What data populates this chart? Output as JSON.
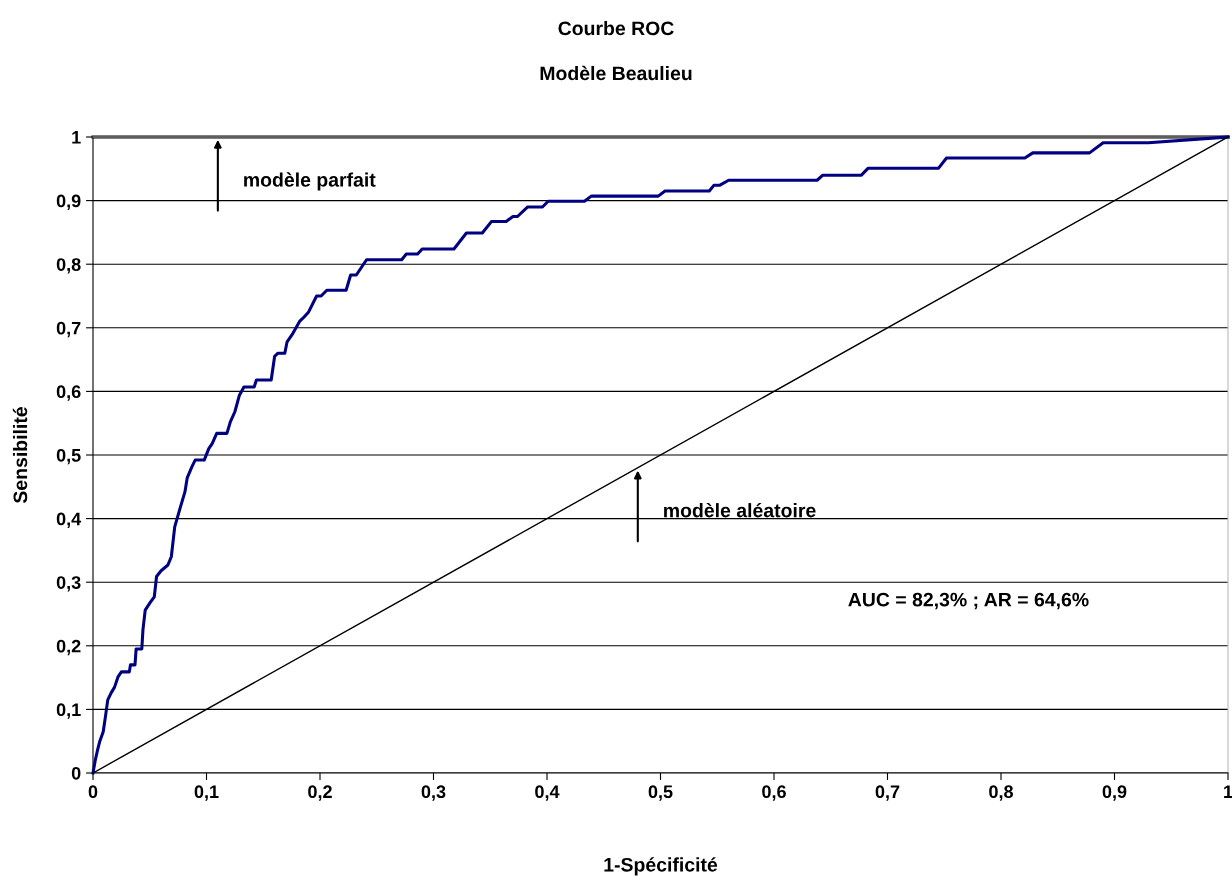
{
  "chart_data": {
    "type": "line",
    "title": "Courbe ROC",
    "subtitle": "Modèle Beaulieu",
    "xlabel": "1-Spécificité",
    "ylabel": "Sensibilité",
    "series": [
      {
        "color": "#000080",
        "x": [
          0,
          0.002,
          0.004,
          0.006,
          0.009,
          0.011,
          0.013,
          0.016,
          0.019,
          0.022,
          0.025,
          0.032,
          0.033,
          0.037,
          0.038,
          0.043,
          0.044,
          0.046,
          0.05,
          0.054,
          0.056,
          0.06,
          0.066,
          0.069,
          0.072,
          0.077,
          0.081,
          0.083,
          0.087,
          0.09,
          0.098,
          0.102,
          0.105,
          0.109,
          0.118,
          0.121,
          0.125,
          0.129,
          0.133,
          0.142,
          0.144,
          0.157,
          0.16,
          0.163,
          0.169,
          0.171,
          0.176,
          0.182,
          0.186,
          0.19,
          0.197,
          0.201,
          0.206,
          0.223,
          0.227,
          0.232,
          0.241,
          0.272,
          0.276,
          0.286,
          0.29,
          0.318,
          0.329,
          0.343,
          0.351,
          0.364,
          0.37,
          0.374,
          0.383,
          0.396,
          0.401,
          0.433,
          0.439,
          0.498,
          0.504,
          0.543,
          0.547,
          0.552,
          0.56,
          0.638,
          0.643,
          0.677,
          0.683,
          0.745,
          0.752,
          0.821,
          0.828,
          0.878,
          0.89,
          0.93,
          1
        ],
        "values": [
          0,
          0.02,
          0.036,
          0.05,
          0.065,
          0.089,
          0.115,
          0.126,
          0.135,
          0.151,
          0.159,
          0.159,
          0.17,
          0.17,
          0.195,
          0.195,
          0.225,
          0.256,
          0.267,
          0.277,
          0.309,
          0.318,
          0.327,
          0.34,
          0.387,
          0.418,
          0.442,
          0.464,
          0.481,
          0.492,
          0.492,
          0.51,
          0.518,
          0.534,
          0.534,
          0.552,
          0.568,
          0.594,
          0.607,
          0.607,
          0.618,
          0.618,
          0.655,
          0.66,
          0.66,
          0.678,
          0.691,
          0.71,
          0.717,
          0.725,
          0.75,
          0.75,
          0.759,
          0.759,
          0.783,
          0.783,
          0.807,
          0.807,
          0.816,
          0.816,
          0.824,
          0.824,
          0.849,
          0.849,
          0.867,
          0.867,
          0.875,
          0.875,
          0.89,
          0.89,
          0.899,
          0.899,
          0.907,
          0.907,
          0.915,
          0.915,
          0.924,
          0.924,
          0.932,
          0.932,
          0.94,
          0.94,
          0.951,
          0.951,
          0.967,
          0.967,
          0.975,
          0.975,
          0.991,
          0.991,
          1
        ]
      },
      {
        "color": "#000000",
        "x": [
          0,
          1
        ],
        "values": [
          0,
          1
        ]
      }
    ],
    "ref_lines": [
      {
        "axis": "y",
        "value": 1,
        "color": "#000000"
      }
    ],
    "annotations": [
      {
        "text": "modèle parfait",
        "x": 0.11,
        "y": 1
      },
      {
        "text": "modèle aléatoire",
        "x": 0.48,
        "y": 0.48
      },
      "AUC = 82,3% ; AR = 64,6%"
    ],
    "xlim": [
      0,
      1
    ],
    "ylim": [
      0,
      1
    ],
    "xticks": [
      0,
      {
        "value": 0.1,
        "label": "0,1"
      },
      {
        "value": 0.2,
        "label": "0,2"
      },
      {
        "value": 0.3,
        "label": "0,3"
      },
      {
        "value": 0.4,
        "label": "0,4"
      },
      {
        "value": 0.5,
        "label": "0,5"
      },
      {
        "value": 0.6,
        "label": "0,6"
      },
      {
        "value": 0.7,
        "label": "0,7"
      },
      {
        "value": 0.8,
        "label": "0,8"
      },
      {
        "value": 0.9,
        "label": "0,9"
      },
      1
    ],
    "yticks": [
      0,
      {
        "value": 0.1,
        "label": "0,1"
      },
      {
        "value": 0.2,
        "label": "0,2"
      },
      {
        "value": 0.3,
        "label": "0,3"
      },
      {
        "value": 0.4,
        "label": "0,4"
      },
      {
        "value": 0.5,
        "label": "0,5"
      },
      {
        "value": 0.6,
        "label": "0,6"
      },
      {
        "value": 0.7,
        "label": "0,7"
      },
      {
        "value": 0.8,
        "label": "0,8"
      },
      {
        "value": 0.9,
        "label": "0,9"
      },
      1
    ],
    "grid": "y",
    "marker": "none",
    "line_style": "solid"
  }
}
